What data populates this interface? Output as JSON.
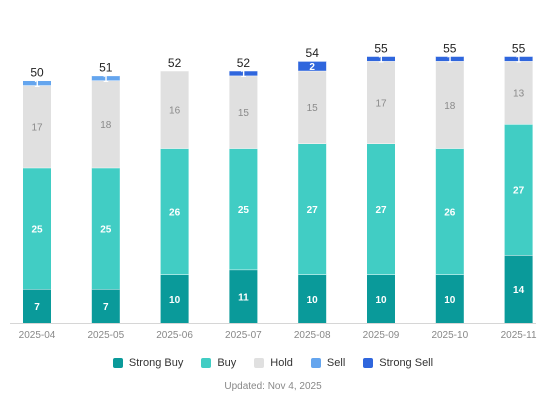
{
  "chart_data": {
    "type": "bar",
    "stacked": true,
    "categories": [
      "2025-04",
      "2025-05",
      "2025-06",
      "2025-07",
      "2025-08",
      "2025-09",
      "2025-10",
      "2025-11"
    ],
    "totals": [
      50,
      51,
      52,
      52,
      54,
      55,
      55,
      55
    ],
    "series": [
      {
        "name": "Strong Buy",
        "color": "#0a9a9a",
        "label_color": "#ffffff",
        "values": [
          7,
          7,
          10,
          11,
          10,
          10,
          10,
          14
        ]
      },
      {
        "name": "Buy",
        "color": "#41cdc4",
        "label_color": "#ffffff",
        "values": [
          25,
          25,
          26,
          25,
          27,
          27,
          26,
          27
        ]
      },
      {
        "name": "Hold",
        "color": "#e0e0e0",
        "label_color": "#8a8a8a",
        "values": [
          17,
          18,
          16,
          15,
          15,
          17,
          18,
          13
        ]
      },
      {
        "name": "Sell",
        "color": "#64a5ee",
        "label_color": "#ffffff",
        "values": [
          1,
          1,
          0,
          0,
          0,
          0,
          0,
          0
        ]
      },
      {
        "name": "Strong Sell",
        "color": "#2f66dd",
        "label_color": "#ffffff",
        "values": [
          0,
          0,
          0,
          1,
          2,
          1,
          1,
          1
        ]
      }
    ],
    "ylim": [
      0,
      55
    ],
    "grid": false,
    "legend_position": "bottom"
  },
  "footer": {
    "updated": "Updated: Nov 4, 2025"
  }
}
